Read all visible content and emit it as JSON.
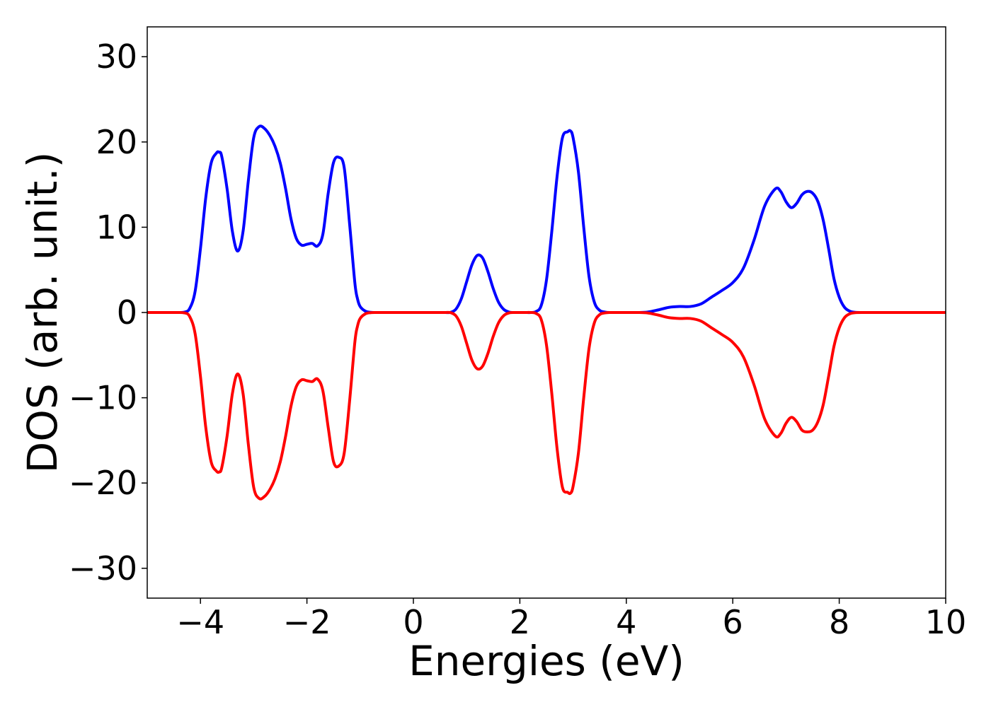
{
  "chart_data": {
    "type": "line",
    "title": "",
    "xlabel": "Energies (eV)",
    "ylabel": "DOS (arb. unit.)",
    "xlim": [
      -5,
      10
    ],
    "ylim": [
      -33.5,
      33.5
    ],
    "xticks": [
      -4,
      -2,
      0,
      2,
      4,
      6,
      8,
      10
    ],
    "yticks": [
      -30,
      -20,
      -10,
      0,
      10,
      20,
      30
    ],
    "xtick_labels": [
      "−4",
      "−2",
      "0",
      "2",
      "4",
      "6",
      "8",
      "10"
    ],
    "ytick_labels": [
      "−30",
      "−20",
      "−10",
      "0",
      "10",
      "20",
      "30"
    ],
    "grid": false,
    "legend": "none",
    "series": [
      {
        "color": "#0000ff",
        "x": [
          -5.0,
          -4.5,
          -4.3,
          -4.2,
          -4.1,
          -4.0,
          -3.9,
          -3.8,
          -3.7,
          -3.65,
          -3.6,
          -3.5,
          -3.4,
          -3.3,
          -3.2,
          -3.1,
          -3.0,
          -2.9,
          -2.8,
          -2.7,
          -2.6,
          -2.5,
          -2.4,
          -2.3,
          -2.2,
          -2.1,
          -2.0,
          -1.9,
          -1.8,
          -1.7,
          -1.6,
          -1.5,
          -1.4,
          -1.3,
          -1.2,
          -1.1,
          -1.05,
          -1.0,
          -0.9,
          -0.8,
          -0.7,
          -0.6,
          -0.5,
          -0.4,
          0.0,
          0.5,
          0.6,
          0.7,
          0.8,
          0.9,
          1.0,
          1.1,
          1.2,
          1.3,
          1.4,
          1.5,
          1.6,
          1.7,
          1.8,
          1.9,
          2.0,
          2.1,
          2.2,
          2.3,
          2.4,
          2.5,
          2.6,
          2.7,
          2.8,
          2.9,
          2.95,
          3.0,
          3.1,
          3.2,
          3.3,
          3.4,
          3.5,
          3.6,
          3.7,
          3.8,
          4.0,
          4.2,
          4.4,
          4.6,
          4.8,
          5.0,
          5.2,
          5.4,
          5.6,
          5.8,
          6.0,
          6.2,
          6.4,
          6.6,
          6.8,
          6.9,
          7.0,
          7.1,
          7.2,
          7.3,
          7.4,
          7.5,
          7.6,
          7.7,
          7.8,
          7.9,
          8.0,
          8.1,
          8.2,
          8.3,
          8.5,
          9.0,
          9.5,
          10.0
        ],
        "values": [
          0,
          0,
          0.05,
          0.5,
          2.5,
          7.5,
          13.5,
          17.5,
          18.7,
          18.8,
          18.3,
          14.5,
          9.5,
          7.2,
          9.5,
          15.5,
          20.5,
          21.8,
          21.6,
          20.8,
          19.5,
          17.5,
          14.5,
          11.0,
          8.7,
          7.9,
          8.0,
          8.1,
          7.8,
          9.2,
          14.0,
          17.6,
          18.2,
          17.0,
          10.5,
          3.5,
          1.6,
          0.7,
          0.15,
          0.02,
          0,
          0,
          0,
          0,
          0,
          0,
          0,
          0.02,
          0.4,
          1.6,
          3.6,
          5.6,
          6.7,
          6.4,
          4.8,
          2.8,
          1.2,
          0.35,
          0.05,
          0,
          0,
          0,
          0,
          0.1,
          0.8,
          3.8,
          9.5,
          16.0,
          20.5,
          21.2,
          21.3,
          20.5,
          16.5,
          10.0,
          4.2,
          1.2,
          0.25,
          0.05,
          0,
          0,
          0,
          0,
          0.05,
          0.3,
          0.6,
          0.7,
          0.7,
          1.0,
          1.8,
          2.6,
          3.5,
          5.2,
          8.5,
          12.5,
          14.5,
          14.2,
          13.0,
          12.3,
          12.8,
          13.8,
          14.2,
          14.0,
          13.0,
          10.8,
          7.5,
          4.0,
          1.8,
          0.6,
          0.15,
          0.02,
          0,
          0,
          0,
          0
        ]
      },
      {
        "color": "#ff0000",
        "x": [
          -5.0,
          -4.5,
          -4.3,
          -4.2,
          -4.1,
          -4.0,
          -3.9,
          -3.8,
          -3.7,
          -3.65,
          -3.6,
          -3.5,
          -3.4,
          -3.3,
          -3.2,
          -3.1,
          -3.0,
          -2.9,
          -2.8,
          -2.7,
          -2.6,
          -2.5,
          -2.4,
          -2.3,
          -2.2,
          -2.1,
          -2.0,
          -1.9,
          -1.8,
          -1.7,
          -1.6,
          -1.5,
          -1.4,
          -1.3,
          -1.2,
          -1.1,
          -1.05,
          -1.0,
          -0.9,
          -0.8,
          -0.7,
          -0.6,
          -0.5,
          -0.4,
          0.0,
          0.5,
          0.6,
          0.7,
          0.8,
          0.9,
          1.0,
          1.1,
          1.2,
          1.3,
          1.4,
          1.5,
          1.6,
          1.7,
          1.8,
          1.9,
          2.0,
          2.1,
          2.2,
          2.3,
          2.4,
          2.5,
          2.6,
          2.7,
          2.8,
          2.9,
          2.95,
          3.0,
          3.1,
          3.2,
          3.3,
          3.4,
          3.5,
          3.6,
          3.7,
          3.8,
          4.0,
          4.2,
          4.4,
          4.6,
          4.8,
          5.0,
          5.2,
          5.4,
          5.6,
          5.8,
          6.0,
          6.2,
          6.4,
          6.6,
          6.8,
          6.9,
          7.0,
          7.1,
          7.2,
          7.3,
          7.4,
          7.5,
          7.6,
          7.7,
          7.8,
          7.9,
          8.0,
          8.1,
          8.2,
          8.3,
          8.5,
          9.0,
          9.5,
          10.0
        ],
        "values": [
          0,
          0,
          -0.05,
          -0.5,
          -2.5,
          -7.5,
          -13.5,
          -17.5,
          -18.6,
          -18.7,
          -18.2,
          -14.5,
          -9.5,
          -7.2,
          -9.5,
          -15.5,
          -20.5,
          -21.8,
          -21.6,
          -20.8,
          -19.5,
          -17.5,
          -14.5,
          -11.0,
          -8.7,
          -7.9,
          -8.0,
          -8.1,
          -7.8,
          -9.2,
          -13.5,
          -17.5,
          -18.0,
          -16.5,
          -10.5,
          -3.5,
          -1.6,
          -0.7,
          -0.15,
          -0.02,
          0,
          0,
          0,
          0,
          0,
          0,
          0,
          -0.02,
          -0.4,
          -1.6,
          -3.6,
          -5.6,
          -6.6,
          -6.3,
          -4.8,
          -2.8,
          -1.2,
          -0.35,
          -0.05,
          0,
          0,
          0,
          0,
          -0.1,
          -0.8,
          -3.8,
          -9.5,
          -16.0,
          -20.5,
          -21.1,
          -21.2,
          -20.4,
          -16.5,
          -10.0,
          -4.2,
          -1.2,
          -0.25,
          -0.05,
          0,
          0,
          0,
          0,
          -0.05,
          -0.3,
          -0.6,
          -0.7,
          -0.7,
          -1.0,
          -1.8,
          -2.6,
          -3.5,
          -5.2,
          -8.5,
          -12.5,
          -14.5,
          -14.2,
          -13.0,
          -12.3,
          -12.8,
          -13.8,
          -14.0,
          -13.8,
          -12.8,
          -10.8,
          -7.5,
          -4.0,
          -1.8,
          -0.6,
          -0.15,
          -0.02,
          0,
          0,
          0,
          0
        ]
      }
    ]
  }
}
